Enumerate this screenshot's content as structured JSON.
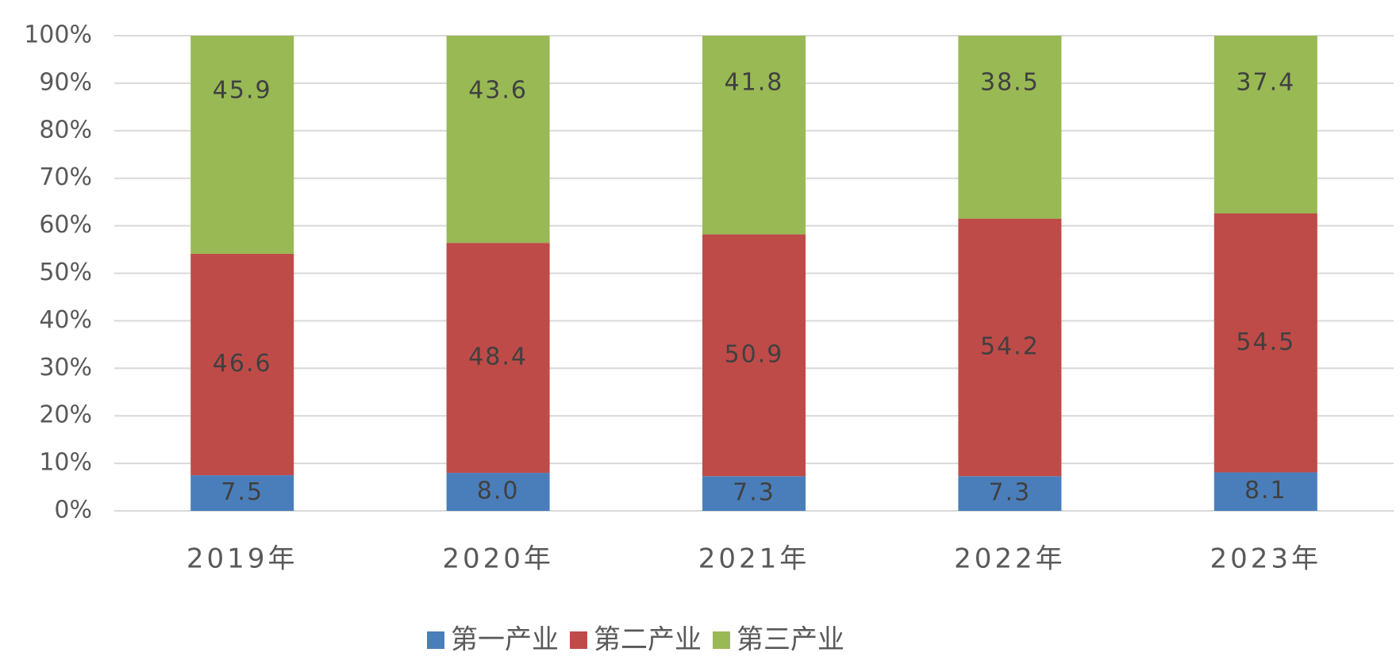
{
  "chart_data": {
    "type": "stacked_bar_percent",
    "categories": [
      "2019年",
      "2020年",
      "2021年",
      "2022年",
      "2023年"
    ],
    "series": [
      {
        "name": "第一产业",
        "color": "#4a7ebb",
        "values": [
          7.5,
          8.0,
          7.3,
          7.3,
          8.1
        ],
        "value_labels": [
          "7.5",
          "8.0",
          "7.3",
          "7.3",
          "8.1"
        ]
      },
      {
        "name": "第二产业",
        "color": "#be4b48",
        "values": [
          46.6,
          48.4,
          50.9,
          54.2,
          54.5
        ]
      },
      {
        "name": "第三产业",
        "color": "#98b954",
        "values": [
          45.9,
          43.6,
          41.8,
          38.5,
          37.4
        ]
      }
    ],
    "ylim": [
      0,
      100
    ],
    "yticks": [
      {
        "value": 0,
        "label": "0%"
      },
      {
        "value": 10,
        "label": "10%"
      },
      {
        "value": 20,
        "label": "20%"
      },
      {
        "value": 30,
        "label": "30%"
      },
      {
        "value": 40,
        "label": "40%"
      },
      {
        "value": 50,
        "label": "50%"
      },
      {
        "value": 60,
        "label": "60%"
      },
      {
        "value": 70,
        "label": "70%"
      },
      {
        "value": 80,
        "label": "80%"
      },
      {
        "value": 90,
        "label": "90%"
      },
      {
        "value": 100,
        "label": "100%"
      }
    ],
    "grid": true,
    "legend": "bottom"
  }
}
